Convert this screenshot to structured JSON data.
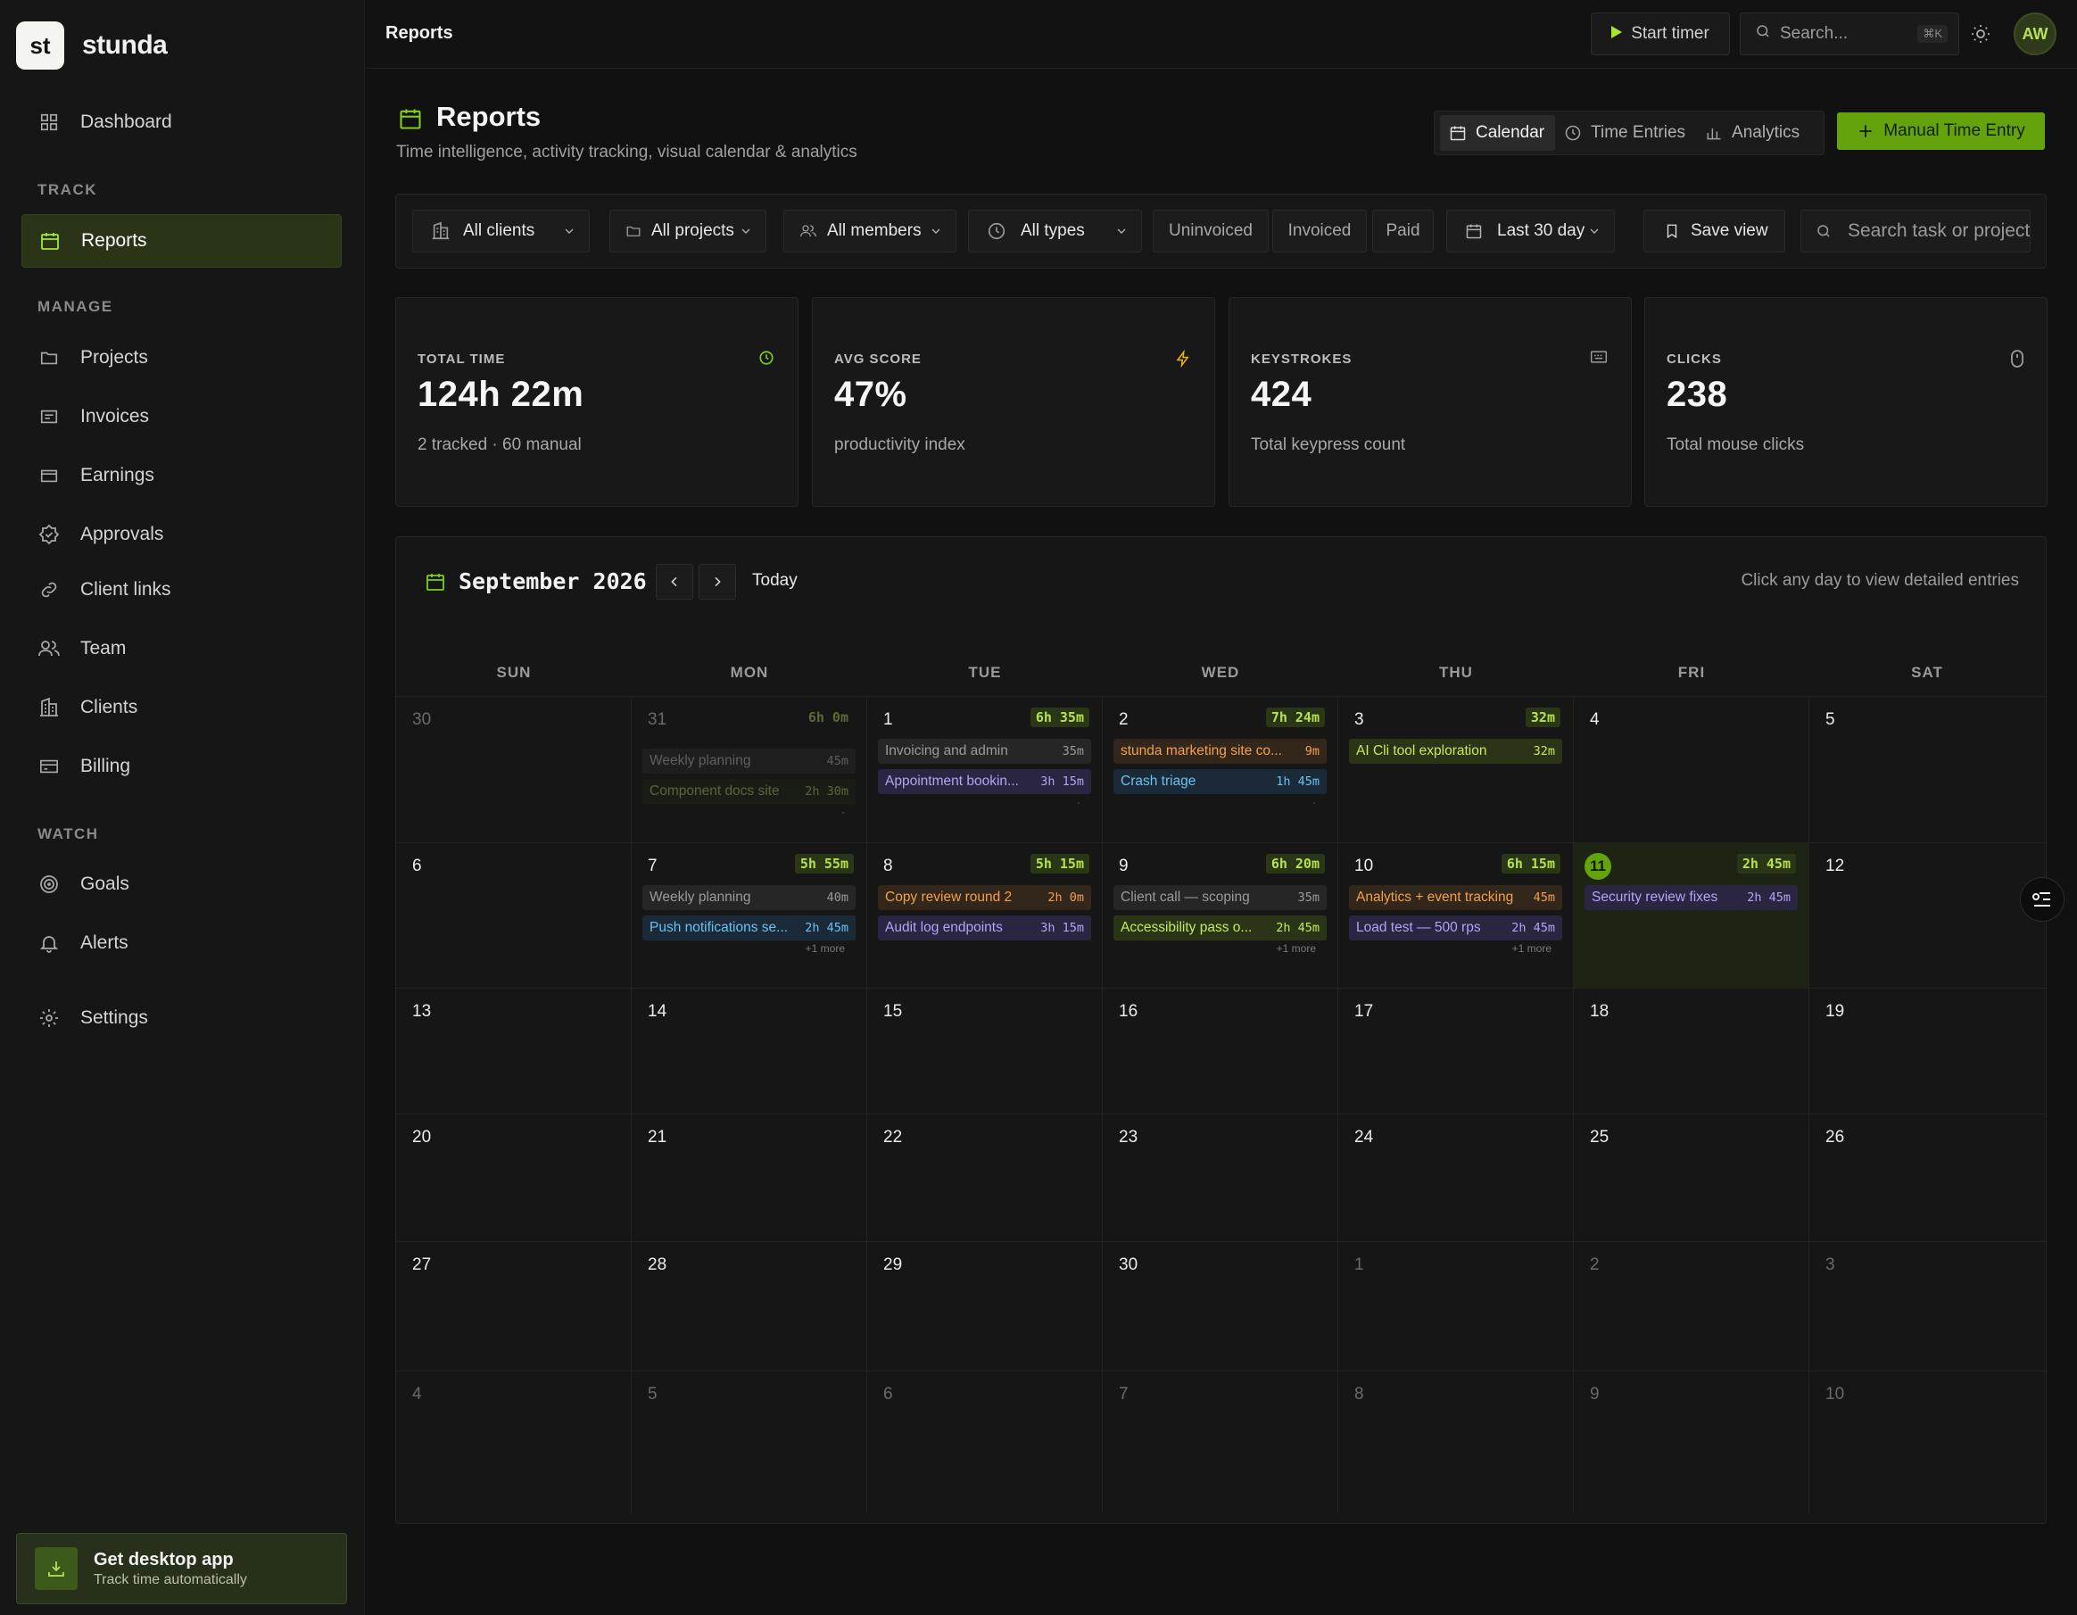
{
  "app": {
    "logo_mark": "st",
    "name": "stunda"
  },
  "sidebar": {
    "dashboard": "Dashboard",
    "sections": {
      "track": "TRACK",
      "manage": "MANAGE",
      "watch": "WATCH"
    },
    "reports": "Reports",
    "projects": "Projects",
    "invoices": "Invoices",
    "earnings": "Earnings",
    "approvals": "Approvals",
    "client_links": "Client links",
    "team": "Team",
    "clients": "Clients",
    "billing": "Billing",
    "goals": "Goals",
    "alerts": "Alerts",
    "settings": "Settings",
    "promo": {
      "title": "Get desktop app",
      "subtitle": "Track time automatically"
    }
  },
  "topbar": {
    "title": "Reports",
    "start_timer": "Start timer",
    "search_placeholder": "Search...",
    "search_shortcut": "⌘K",
    "avatar": "AW"
  },
  "header": {
    "title": "Reports",
    "subtitle": "Time intelligence, activity tracking, visual calendar & analytics",
    "tabs": {
      "calendar": "Calendar",
      "time_entries": "Time Entries",
      "analytics": "Analytics"
    },
    "manual_entry": "Manual Time Entry"
  },
  "filters": {
    "clients": "All clients",
    "projects": "All projects",
    "members": "All members",
    "types": "All types",
    "uninvoiced": "Uninvoiced",
    "invoiced": "Invoiced",
    "paid": "Paid",
    "range": "Last 30 day",
    "save_view": "Save view",
    "search_placeholder": "Search task or project"
  },
  "stats": [
    {
      "label": "TOTAL TIME",
      "value": "124h 22m",
      "sub": "2 tracked · 60 manual",
      "icon": "clock-icon"
    },
    {
      "label": "AVG SCORE",
      "value": "47%",
      "sub": "productivity index",
      "icon": "bolt-icon"
    },
    {
      "label": "KEYSTROKES",
      "value": "424",
      "sub": "Total keypress count",
      "icon": "keyboard-icon"
    },
    {
      "label": "CLICKS",
      "value": "238",
      "sub": "Total mouse clicks",
      "icon": "mouse-icon"
    }
  ],
  "calendar": {
    "month": "September 2026",
    "today_label": "Today",
    "hint": "Click any day to view detailed entries",
    "weekdays": [
      "SUN",
      "MON",
      "TUE",
      "WED",
      "THU",
      "FRI",
      "SAT"
    ],
    "weeks": [
      [
        {
          "n": "30",
          "muted": true
        },
        {
          "n": "31",
          "muted": true,
          "total": "6h 0m",
          "dim": true,
          "entries": [
            {
              "t": "Weekly planning",
              "d": "45m",
              "c": "gray",
              "dim": true
            },
            {
              "t": "Component docs site",
              "d": "2h 30m",
              "c": "olive",
              "dim": true
            }
          ],
          "more": "·"
        },
        {
          "n": "1",
          "total": "6h 35m",
          "entries": [
            {
              "t": "Invoicing and admin",
              "d": "35m",
              "c": "gray"
            },
            {
              "t": "Appointment bookin...",
              "d": "3h 15m",
              "c": "violet"
            }
          ],
          "more": "·"
        },
        {
          "n": "2",
          "total": "7h 24m",
          "entries": [
            {
              "t": "stunda marketing site co...",
              "d": "9m",
              "c": "orange"
            },
            {
              "t": "Crash triage",
              "d": "1h 45m",
              "c": "blue"
            }
          ],
          "more": "·"
        },
        {
          "n": "3",
          "total": "32m",
          "entries": [
            {
              "t": "AI Cli tool exploration",
              "d": "32m",
              "c": "lime"
            }
          ]
        },
        {
          "n": "4"
        },
        {
          "n": "5"
        }
      ],
      [
        {
          "n": "6"
        },
        {
          "n": "7",
          "total": "5h 55m",
          "entries": [
            {
              "t": "Weekly planning",
              "d": "40m",
              "c": "gray"
            },
            {
              "t": "Push notifications se...",
              "d": "2h 45m",
              "c": "blue"
            }
          ],
          "more": "+1 more"
        },
        {
          "n": "8",
          "total": "5h 15m",
          "entries": [
            {
              "t": "Copy review round 2",
              "d": "2h 0m",
              "c": "orange"
            },
            {
              "t": "Audit log endpoints",
              "d": "3h 15m",
              "c": "violet"
            }
          ]
        },
        {
          "n": "9",
          "total": "6h 20m",
          "entries": [
            {
              "t": "Client call — scoping",
              "d": "35m",
              "c": "gray"
            },
            {
              "t": "Accessibility pass o...",
              "d": "2h 45m",
              "c": "lime"
            }
          ],
          "more": "+1 more"
        },
        {
          "n": "10",
          "total": "6h 15m",
          "entries": [
            {
              "t": "Analytics + event tracking",
              "d": "45m",
              "c": "orange"
            },
            {
              "t": "Load test — 500 rps",
              "d": "2h 45m",
              "c": "violet"
            }
          ],
          "more": "+1 more"
        },
        {
          "n": "11",
          "today": true,
          "total": "2h 45m",
          "entries": [
            {
              "t": "Security review fixes",
              "d": "2h 45m",
              "c": "violet"
            }
          ]
        },
        {
          "n": "12"
        }
      ],
      [
        {
          "n": "13"
        },
        {
          "n": "14"
        },
        {
          "n": "15"
        },
        {
          "n": "16"
        },
        {
          "n": "17"
        },
        {
          "n": "18"
        },
        {
          "n": "19"
        }
      ],
      [
        {
          "n": "20"
        },
        {
          "n": "21"
        },
        {
          "n": "22"
        },
        {
          "n": "23"
        },
        {
          "n": "24"
        },
        {
          "n": "25"
        },
        {
          "n": "26"
        }
      ],
      [
        {
          "n": "27"
        },
        {
          "n": "28"
        },
        {
          "n": "29"
        },
        {
          "n": "30"
        },
        {
          "n": "1",
          "muted": true
        },
        {
          "n": "2",
          "muted": true
        },
        {
          "n": "3",
          "muted": true
        }
      ],
      [
        {
          "n": "4",
          "muted": true
        },
        {
          "n": "5",
          "muted": true
        },
        {
          "n": "6",
          "muted": true
        },
        {
          "n": "7",
          "muted": true
        },
        {
          "n": "8",
          "muted": true
        },
        {
          "n": "9",
          "muted": true
        },
        {
          "n": "10",
          "muted": true
        }
      ]
    ]
  },
  "colors": {
    "accent": "#65a30d",
    "accent_text": "#a3e635",
    "entry_gray": {
      "bg": "#262626",
      "fg": "#9a9a9a"
    },
    "entry_violet": {
      "bg": "#2a2540",
      "fg": "#b3a4f5"
    },
    "entry_orange": {
      "bg": "#33261a",
      "fg": "#f0a050"
    },
    "entry_blue": {
      "bg": "#1a2a38",
      "fg": "#6cc0ee"
    },
    "entry_lime": {
      "bg": "#2b3416",
      "fg": "#c6ea5a"
    },
    "entry_olive": {
      "bg": "#1f2416",
      "fg": "#8fa35a"
    }
  }
}
